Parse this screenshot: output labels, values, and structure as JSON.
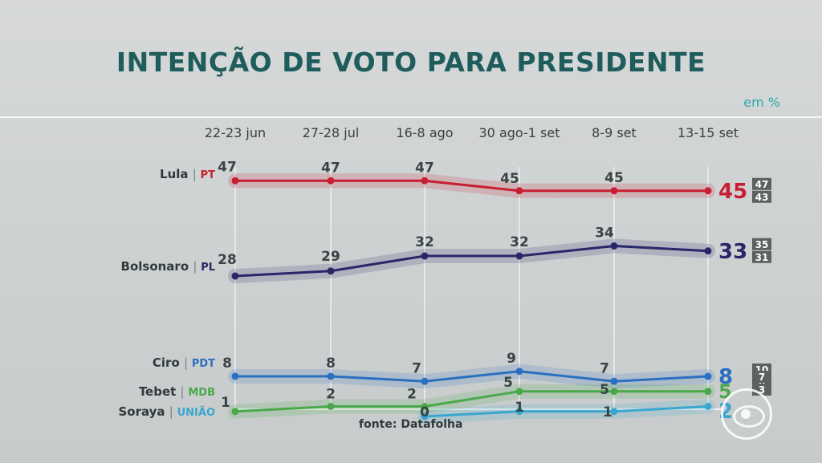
{
  "title": "INTENÇÃO DE VOTO PARA PRESIDENTE",
  "unit": "em %",
  "source": "fonte: Datafolha",
  "chart_data": {
    "type": "line",
    "categories": [
      "22-23 jun",
      "27-28 jul",
      "16-8 ago",
      "30 ago-1 set",
      "8-9 set",
      "13-15 set"
    ],
    "series": [
      {
        "name": "Lula",
        "party": "PT",
        "color": "#c81e32",
        "party_color": "#c81e32",
        "values": [
          47,
          47,
          47,
          45,
          45,
          45
        ],
        "range": [
          "47",
          "43"
        ]
      },
      {
        "name": "Bolsonaro",
        "party": "PL",
        "color": "#27276a",
        "party_color": "#27276a",
        "values": [
          28,
          29,
          32,
          32,
          34,
          33
        ],
        "range": [
          "35",
          "31"
        ]
      },
      {
        "name": "Ciro",
        "party": "PDT",
        "color": "#2b6fc0",
        "party_color": "#2b6fc0",
        "values": [
          8,
          8,
          7,
          9,
          7,
          8
        ],
        "range": [
          "10",
          "6"
        ]
      },
      {
        "name": "Tebet",
        "party": "MDB",
        "color": "#4aa84a",
        "party_color": "#4aa84a",
        "values": [
          1,
          2,
          2,
          5,
          5,
          5
        ],
        "range": [
          "7",
          "3"
        ]
      },
      {
        "name": "Soraya",
        "party": "UNIÃO",
        "color": "#3aa6cf",
        "party_color": "#3aa6cf",
        "values": [
          null,
          null,
          0,
          1,
          1,
          2
        ],
        "range": []
      }
    ]
  }
}
